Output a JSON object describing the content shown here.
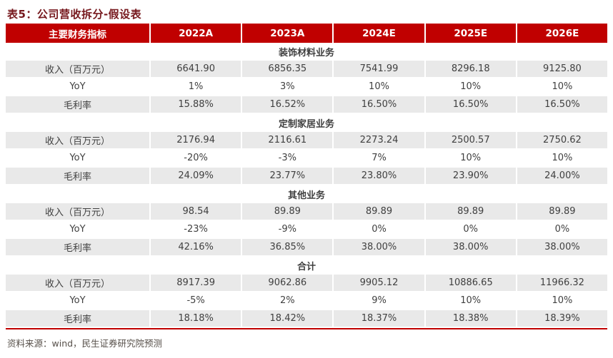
{
  "title": "表5：公司营收拆分-假设表",
  "table": {
    "header": [
      "主要财务指标",
      "2022A",
      "2023A",
      "2024E",
      "2025E",
      "2026E"
    ],
    "sections": [
      {
        "name": "装饰材料业务",
        "rows": [
          {
            "label": "收入（百万元）",
            "values": [
              "6641.90",
              "6856.35",
              "7541.99",
              "8296.18",
              "9125.80"
            ]
          },
          {
            "label": "YoY",
            "values": [
              "1%",
              "3%",
              "10%",
              "10%",
              "10%"
            ]
          },
          {
            "label": "毛利率",
            "values": [
              "15.88%",
              "16.52%",
              "16.50%",
              "16.50%",
              "16.50%"
            ]
          }
        ]
      },
      {
        "name": "定制家居业务",
        "rows": [
          {
            "label": "收入（百万元）",
            "values": [
              "2176.94",
              "2116.61",
              "2273.24",
              "2500.57",
              "2750.62"
            ]
          },
          {
            "label": "YoY",
            "values": [
              "-20%",
              "-3%",
              "7%",
              "10%",
              "10%"
            ]
          },
          {
            "label": "毛利率",
            "values": [
              "24.09%",
              "23.77%",
              "23.80%",
              "23.90%",
              "24.00%"
            ]
          }
        ]
      },
      {
        "name": "其他业务",
        "rows": [
          {
            "label": "收入（百万元）",
            "values": [
              "98.54",
              "89.89",
              "89.89",
              "89.89",
              "89.89"
            ]
          },
          {
            "label": "YoY",
            "values": [
              "-23%",
              "-9%",
              "0%",
              "0%",
              "0%"
            ]
          },
          {
            "label": "毛利率",
            "values": [
              "42.16%",
              "36.85%",
              "38.00%",
              "38.00%",
              "38.00%"
            ]
          }
        ]
      },
      {
        "name": "合计",
        "rows": [
          {
            "label": "收入（百万元）",
            "values": [
              "8917.39",
              "9062.86",
              "9905.12",
              "10886.65",
              "11966.32"
            ]
          },
          {
            "label": "YoY",
            "values": [
              "-5%",
              "2%",
              "9%",
              "10%",
              "10%"
            ]
          },
          {
            "label": "毛利率",
            "values": [
              "18.18%",
              "18.42%",
              "18.37%",
              "18.38%",
              "18.39%"
            ]
          }
        ]
      }
    ]
  },
  "footer": "资料来源：wind，民生证券研究院预测",
  "colors": {
    "header_bg": "#C00000",
    "row_shade": "#E9E9E9",
    "title_color": "#76181D",
    "body_text": "#404040",
    "footer_text": "#57504A"
  }
}
